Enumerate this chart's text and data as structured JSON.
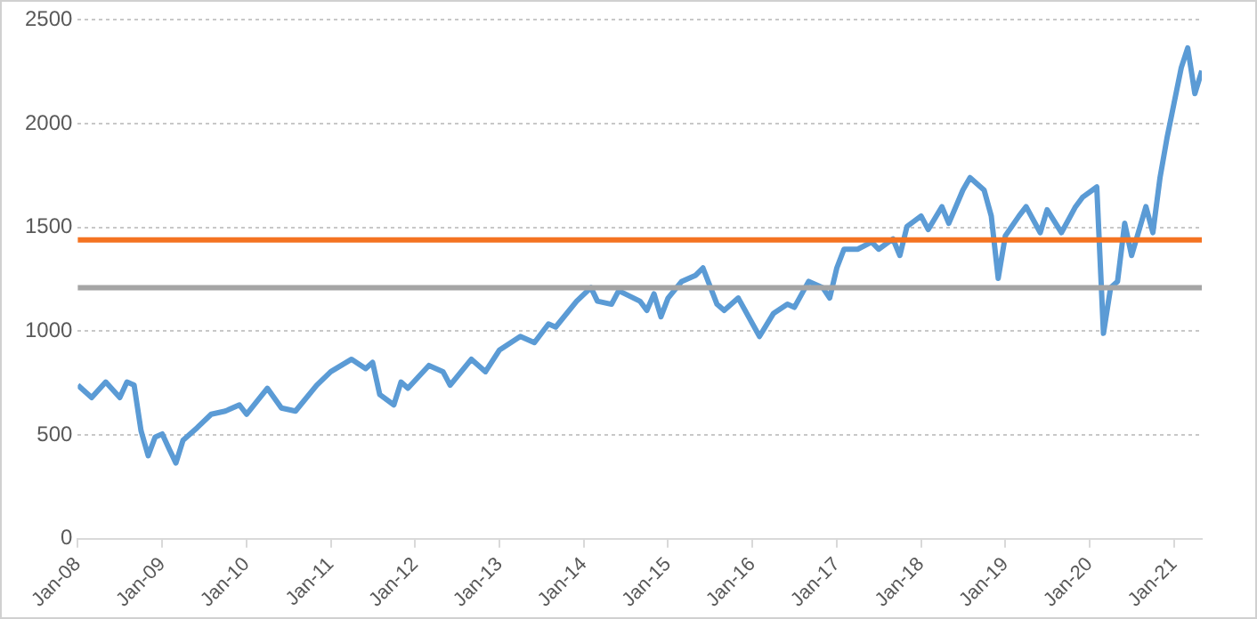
{
  "chart_data": {
    "type": "line",
    "x": [
      "2008-01",
      "2008-03",
      "2008-05",
      "2008-07",
      "2008-08",
      "2008-09",
      "2008-10",
      "2008-11",
      "2008-12",
      "2009-01",
      "2009-02",
      "2009-03",
      "2009-04",
      "2009-06",
      "2009-08",
      "2009-10",
      "2009-12",
      "2010-01",
      "2010-04",
      "2010-06",
      "2010-08",
      "2010-11",
      "2011-01",
      "2011-04",
      "2011-06",
      "2011-07",
      "2011-08",
      "2011-10",
      "2011-11",
      "2011-12",
      "2012-03",
      "2012-05",
      "2012-06",
      "2012-09",
      "2012-11",
      "2013-01",
      "2013-04",
      "2013-06",
      "2013-08",
      "2013-09",
      "2013-12",
      "2014-02",
      "2014-03",
      "2014-05",
      "2014-06",
      "2014-09",
      "2014-10",
      "2014-11",
      "2014-12",
      "2015-01",
      "2015-03",
      "2015-05",
      "2015-06",
      "2015-08",
      "2015-09",
      "2015-11",
      "2016-02",
      "2016-04",
      "2016-06",
      "2016-07",
      "2016-09",
      "2016-11",
      "2016-12",
      "2017-01",
      "2017-02",
      "2017-04",
      "2017-06",
      "2017-07",
      "2017-09",
      "2017-10",
      "2017-11",
      "2018-01",
      "2018-02",
      "2018-04",
      "2018-05",
      "2018-07",
      "2018-08",
      "2018-10",
      "2018-11",
      "2018-12",
      "2019-01",
      "2019-03",
      "2019-04",
      "2019-06",
      "2019-07",
      "2019-09",
      "2019-11",
      "2019-12",
      "2020-02",
      "2020-03",
      "2020-04",
      "2020-05",
      "2020-06",
      "2020-07",
      "2020-09",
      "2020-10",
      "2020-11",
      "2020-12",
      "2021-01",
      "2021-02",
      "2021-03",
      "2021-04",
      "2021-05"
    ],
    "series": [
      {
        "color": "#5b9bd5",
        "values": [
          740,
          680,
          755,
          680,
          755,
          740,
          520,
          400,
          490,
          505,
          430,
          365,
          475,
          535,
          600,
          615,
          645,
          600,
          725,
          630,
          615,
          740,
          805,
          865,
          820,
          850,
          695,
          645,
          755,
          725,
          835,
          805,
          740,
          865,
          805,
          910,
          975,
          945,
          1035,
          1020,
          1145,
          1210,
          1145,
          1130,
          1195,
          1145,
          1100,
          1180,
          1070,
          1160,
          1240,
          1270,
          1305,
          1130,
          1100,
          1160,
          975,
          1085,
          1130,
          1115,
          1240,
          1210,
          1160,
          1305,
          1395,
          1395,
          1430,
          1395,
          1445,
          1365,
          1505,
          1555,
          1490,
          1600,
          1520,
          1680,
          1740,
          1680,
          1555,
          1255,
          1460,
          1555,
          1600,
          1475,
          1585,
          1475,
          1600,
          1645,
          1695,
          990,
          1210,
          1240,
          1520,
          1365,
          1600,
          1475,
          1740,
          1930,
          2100,
          2270,
          2365,
          2145,
          2255
        ]
      }
    ],
    "xlim": [
      "2008-01",
      "2021-05"
    ],
    "xticks": [
      {
        "value": "2008-01",
        "label": "Jan-08"
      },
      {
        "value": "2009-01",
        "label": "Jan-09"
      },
      {
        "value": "2010-01",
        "label": "Jan-10"
      },
      {
        "value": "2011-01",
        "label": "Jan-11"
      },
      {
        "value": "2012-01",
        "label": "Jan-12"
      },
      {
        "value": "2013-01",
        "label": "Jan-13"
      },
      {
        "value": "2014-01",
        "label": "Jan-14"
      },
      {
        "value": "2015-01",
        "label": "Jan-15"
      },
      {
        "value": "2016-01",
        "label": "Jan-16"
      },
      {
        "value": "2017-01",
        "label": "Jan-17"
      },
      {
        "value": "2018-01",
        "label": "Jan-18"
      },
      {
        "value": "2019-01",
        "label": "Jan-19"
      },
      {
        "value": "2020-01",
        "label": "Jan-20"
      },
      {
        "value": "2021-01",
        "label": "Jan-21"
      }
    ],
    "ylim": [
      0,
      2500
    ],
    "yticks": [
      0,
      500,
      1000,
      1500,
      2000,
      2500
    ],
    "ref_lines": [
      {
        "axis": "y",
        "value": 1440,
        "color": "#f47321"
      },
      {
        "axis": "y",
        "value": 1210,
        "color": "#a5a5a5"
      }
    ],
    "grid": "y",
    "legend": false,
    "marker": "none",
    "line_style": "solid"
  }
}
